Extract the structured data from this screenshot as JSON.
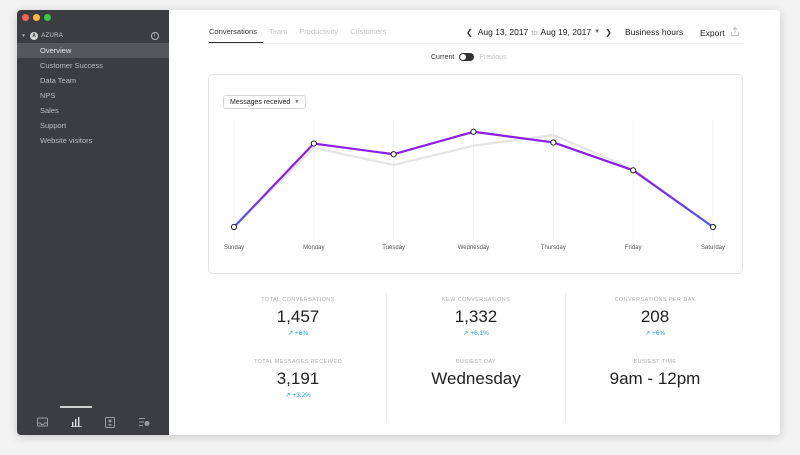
{
  "sidebar": {
    "org_name": "AZURA",
    "org_logo_letter": "A",
    "info_label": "i",
    "items": [
      {
        "label": "Overview",
        "active": true
      },
      {
        "label": "Customer Success"
      },
      {
        "label": "Data Team"
      },
      {
        "label": "NPS"
      },
      {
        "label": "Sales"
      },
      {
        "label": "Support"
      },
      {
        "label": "Website visitors"
      }
    ],
    "bottom_icons": [
      "inbox-icon",
      "bar-chart-icon",
      "contacts-icon",
      "settings-list-icon"
    ]
  },
  "tabs": [
    {
      "label": "Conversations",
      "active": true
    },
    {
      "label": "Team"
    },
    {
      "label": "Productivity"
    },
    {
      "label": "Customers"
    }
  ],
  "date_range": {
    "start": "Aug 13, 2017",
    "connector": "to",
    "end": "Aug 19, 2017"
  },
  "business_hours_label": "Business hours",
  "export_label": "Export",
  "toggle": {
    "current_label": "Current",
    "previous_label": "Previous"
  },
  "metric_select": {
    "value": "Messages received"
  },
  "colors": {
    "accent": "#8a1ee6",
    "line_start": "#4a5bf0",
    "previous_line": "#e6e4e4",
    "change_positive": "#16a6c9"
  },
  "chart_data": {
    "type": "line",
    "categories": [
      "Sunday",
      "Monday",
      "Tuesday",
      "Wednesday",
      "Thursday",
      "Friday",
      "Saturday"
    ],
    "series": [
      {
        "values": [
          0,
          78,
          68,
          89,
          79,
          53,
          0
        ]
      },
      {
        "values": [
          0,
          74,
          58,
          76,
          86,
          54,
          0
        ]
      }
    ],
    "ylim": [
      0,
      100
    ],
    "grid": "vertical"
  },
  "stats": [
    {
      "label": "TOTAL CONVERSATIONS",
      "value": "1,457",
      "change": "+6%"
    },
    {
      "label": "NEW CONVERSATIONS",
      "value": "1,332",
      "change": "+6.1%"
    },
    {
      "label": "CONVERSATIONS PER DAY",
      "value": "208",
      "change": "+6%"
    },
    {
      "label": "TOTAL MESSAGES RECEIVED",
      "value": "3,191",
      "change": "+3.2%"
    },
    {
      "label": "BUSIEST DAY",
      "value": "Wednesday",
      "change": ""
    },
    {
      "label": "BUSIEST TIME",
      "value": "9am - 12pm",
      "change": ""
    }
  ]
}
